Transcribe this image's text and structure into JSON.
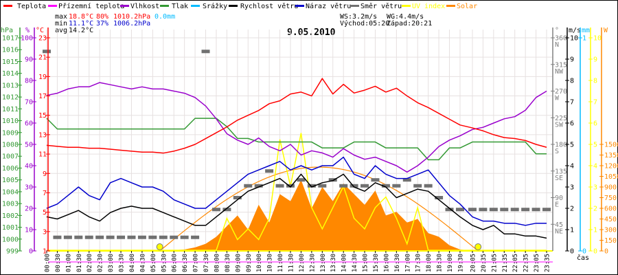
{
  "legend": [
    {
      "label": "Teplota",
      "color": "#ff0000"
    },
    {
      "label": "Přízemní teplota",
      "color": "#ff00ff"
    },
    {
      "label": "Vlhkost",
      "color": "#9900cc"
    },
    {
      "label": "Tlak",
      "color": "#339933"
    },
    {
      "label": "Srážky",
      "color": "#00bbff"
    },
    {
      "label": "Rychlost větru",
      "color": "#000000"
    },
    {
      "label": "Náraz větru",
      "color": "#0000cc"
    },
    {
      "label": "Směr větru",
      "color": "#707070"
    },
    {
      "label": "UV index",
      "color": "#ffff00"
    },
    {
      "label": "Solar",
      "color": "#ff8800"
    }
  ],
  "stats": {
    "max_label": "max",
    "max_temp": "18.8°C",
    "max_hum": "80%",
    "max_press": "1010.2hPa",
    "max_rain": "0.0mm",
    "min_label": "min",
    "min_temp": "11.1°C",
    "min_hum": "37%",
    "min_press": "1006.2hPa",
    "avg_label": "avg",
    "avg_temp": "14.2°C",
    "ws": "WS:3.2m/s",
    "wg": "WG:4.4m/s",
    "sunrise": "Východ:05:20",
    "sunset": "Západ:20:21"
  },
  "chart_data": {
    "type": "line",
    "title": "9.05.2010",
    "xlabel": "čas",
    "grid": true,
    "x": [
      "00:00",
      "00:30",
      "01:00",
      "01:30",
      "02:00",
      "02:30",
      "03:00",
      "03:30",
      "04:00",
      "04:30",
      "05:00",
      "05:30",
      "06:00",
      "06:30",
      "07:00",
      "07:30",
      "08:00",
      "08:30",
      "09:00",
      "09:30",
      "10:00",
      "10:30",
      "11:00",
      "11:30",
      "12:00",
      "12:30",
      "13:00",
      "13:30",
      "14:00",
      "14:30",
      "15:00",
      "15:30",
      "16:00",
      "16:30",
      "17:00",
      "17:30",
      "18:00",
      "18:30",
      "19:00",
      "19:30",
      "20:05",
      "20:35",
      "21:05",
      "21:35",
      "22:05",
      "22:35",
      "23:05",
      "23:35"
    ],
    "axes": {
      "pressure": {
        "unit": "hPa",
        "range": [
          999,
          1017
        ],
        "ticks": [
          "999",
          "1000",
          "1001",
          "1002",
          "1003",
          "1004",
          "1005",
          "1006",
          "1007",
          "1008",
          "1009",
          "1010",
          "1011",
          "1012",
          "1013",
          "1014",
          "1015",
          "1016",
          "1017"
        ]
      },
      "humidity": {
        "unit": "%",
        "range": [
          0,
          100
        ],
        "ticks": [
          "0",
          "10",
          "20",
          "30",
          "40",
          "50",
          "60",
          "70",
          "80",
          "90",
          "100"
        ]
      },
      "temperature": {
        "unit": "°C",
        "range": [
          1,
          23
        ],
        "ticks": [
          "1",
          "3",
          "5",
          "7",
          "9",
          "11",
          "13",
          "15",
          "17",
          "19",
          "21",
          "23"
        ]
      },
      "direction": {
        "unit": "°",
        "range": [
          0,
          360
        ],
        "ticks": [
          {
            "v": "45",
            "c": "NE"
          },
          {
            "v": "90",
            "c": "E"
          },
          {
            "v": "135",
            "c": "SE"
          },
          {
            "v": "180",
            "c": "S"
          },
          {
            "v": "225",
            "c": "SW"
          },
          {
            "v": "270",
            "c": "W"
          },
          {
            "v": "315",
            "c": "NW"
          },
          {
            "v": "360",
            "c": "N"
          }
        ]
      },
      "wind": {
        "unit": "m/s",
        "range": [
          0,
          10
        ],
        "ticks": [
          "0",
          "1",
          "2",
          "3",
          "4",
          "5",
          "6",
          "7",
          "8",
          "9",
          "10"
        ]
      },
      "rain": {
        "unit": "mm",
        "range": [
          0,
          1
        ],
        "ticks": [
          "0",
          "1"
        ]
      },
      "uv": {
        "unit": "",
        "range": [
          0,
          10
        ],
        "ticks": [
          "0",
          "1",
          "2",
          "3",
          "4",
          "5",
          "6",
          "7",
          "8",
          "9",
          "10"
        ]
      },
      "solar": {
        "unit": "W",
        "range": [
          0,
          1500
        ],
        "ticks": [
          "0",
          "150",
          "300",
          "450",
          "600",
          "750",
          "900",
          "1050",
          "1200",
          "1350",
          "1500"
        ]
      }
    },
    "series": [
      {
        "name": "Teplota",
        "axis": "temperature",
        "values": [
          11.9,
          11.8,
          11.7,
          11.7,
          11.6,
          11.6,
          11.5,
          11.4,
          11.3,
          11.2,
          11.2,
          11.1,
          11.3,
          11.6,
          12.0,
          12.6,
          13.2,
          13.8,
          14.5,
          15.0,
          15.5,
          16.2,
          16.5,
          17.2,
          17.4,
          17.0,
          18.8,
          17.2,
          18.2,
          17.3,
          17.6,
          18.0,
          17.4,
          17.8,
          17.0,
          16.3,
          15.8,
          15.2,
          14.6,
          14.0,
          13.7,
          13.4,
          13.0,
          12.7,
          12.6,
          12.4,
          12.0,
          11.7
        ]
      },
      {
        "name": "Vlhkost",
        "axis": "humidity",
        "values": [
          73,
          74,
          76,
          77,
          77,
          79,
          78,
          77,
          76,
          77,
          76,
          76,
          75,
          74,
          72,
          68,
          62,
          55,
          52,
          50,
          53,
          49,
          47,
          50,
          45,
          47,
          46,
          44,
          48,
          45,
          43,
          44,
          42,
          40,
          37,
          40,
          44,
          49,
          52,
          54,
          57,
          58,
          60,
          62,
          63,
          66,
          72,
          75
        ]
      },
      {
        "name": "Tlak",
        "axis": "pressure",
        "values": [
          1010.2,
          1009.3,
          1009.3,
          1009.3,
          1009.3,
          1009.3,
          1009.3,
          1009.3,
          1009.3,
          1009.3,
          1009.3,
          1009.3,
          1009.3,
          1009.3,
          1010.2,
          1010.2,
          1010.2,
          1009.5,
          1008.5,
          1008.5,
          1008.2,
          1008.2,
          1008.2,
          1008.2,
          1008.2,
          1008.2,
          1007.7,
          1007.7,
          1007.7,
          1008.2,
          1008.2,
          1008.2,
          1007.7,
          1007.7,
          1007.7,
          1007.7,
          1006.7,
          1006.7,
          1007.7,
          1007.7,
          1008.2,
          1008.2,
          1008.2,
          1008.2,
          1008.2,
          1008.2,
          1007.2,
          1007.2
        ]
      },
      {
        "name": "Rychlost větru",
        "axis": "wind",
        "values": [
          1.6,
          1.5,
          1.7,
          1.9,
          1.6,
          1.4,
          1.8,
          2.0,
          2.1,
          2.0,
          2.0,
          1.8,
          1.6,
          1.4,
          1.2,
          1.2,
          1.6,
          2.0,
          2.4,
          2.8,
          3.0,
          3.2,
          3.4,
          3.0,
          3.6,
          3.0,
          3.2,
          3.3,
          3.6,
          3.0,
          2.8,
          3.2,
          3.0,
          2.5,
          2.7,
          2.9,
          2.8,
          2.4,
          2.0,
          1.6,
          1.2,
          1.0,
          1.2,
          0.8,
          0.8,
          0.7,
          0.7,
          0.6
        ]
      },
      {
        "name": "Náraz větru",
        "axis": "wind",
        "values": [
          2.0,
          2.2,
          2.6,
          3.0,
          2.6,
          2.4,
          3.2,
          3.4,
          3.2,
          3.0,
          3.0,
          2.8,
          2.4,
          2.2,
          2.0,
          2.0,
          2.4,
          2.8,
          3.2,
          3.6,
          3.8,
          4.0,
          4.2,
          3.8,
          4.0,
          3.8,
          4.0,
          4.0,
          4.4,
          3.6,
          3.4,
          4.0,
          3.6,
          3.4,
          3.4,
          3.6,
          3.8,
          3.2,
          2.6,
          2.2,
          1.6,
          1.4,
          1.4,
          1.3,
          1.3,
          1.2,
          1.3,
          1.3
        ]
      },
      {
        "name": "Směr větru",
        "axis": "direction",
        "values": [
          337,
          23,
          23,
          23,
          23,
          23,
          23,
          23,
          23,
          23,
          23,
          23,
          23,
          23,
          23,
          337,
          70,
          70,
          90,
          110,
          110,
          135,
          110,
          110,
          120,
          110,
          110,
          120,
          110,
          110,
          110,
          120,
          110,
          110,
          120,
          110,
          110,
          90,
          70,
          70,
          70,
          70,
          70,
          70,
          70,
          70,
          70,
          70
        ]
      },
      {
        "name": "UV index",
        "axis": "uv",
        "values": [
          0,
          0,
          0,
          0,
          0,
          0,
          0,
          0,
          0,
          0,
          0,
          0,
          0,
          0,
          0,
          0,
          0,
          1.5,
          0.5,
          1.0,
          0.5,
          1.5,
          5.2,
          3.0,
          5.5,
          2.0,
          1.0,
          2.0,
          3.0,
          1.5,
          1.0,
          2.0,
          2.5,
          1.5,
          0.3,
          2.0,
          0,
          0,
          0,
          0,
          0,
          0,
          0,
          0,
          0,
          0,
          0,
          0
        ]
      },
      {
        "name": "Solar",
        "axis": "solar",
        "values": [
          0,
          0,
          0,
          0,
          0,
          0,
          0,
          0,
          0,
          0,
          0,
          0,
          10,
          20,
          50,
          100,
          200,
          350,
          500,
          300,
          650,
          400,
          800,
          700,
          1000,
          600,
          900,
          700,
          950,
          800,
          650,
          850,
          500,
          550,
          400,
          450,
          250,
          200,
          80,
          20,
          0,
          0,
          0,
          0,
          0,
          0,
          0,
          0
        ]
      },
      {
        "name": "Srážky",
        "axis": "rain",
        "values": [
          0,
          0,
          0,
          0,
          0,
          0,
          0,
          0,
          0,
          0,
          0,
          0,
          0,
          0,
          0,
          0,
          0,
          0,
          0,
          0,
          0,
          0,
          0,
          0,
          0,
          0,
          0,
          0,
          0,
          0,
          0,
          0,
          0,
          0,
          0,
          0,
          0,
          0,
          0,
          0,
          0,
          0,
          0,
          0,
          0,
          0,
          0,
          0
        ]
      }
    ],
    "theoretical_solar_peak": 1180,
    "sun_markers": [
      "05:20",
      "20:21"
    ]
  }
}
